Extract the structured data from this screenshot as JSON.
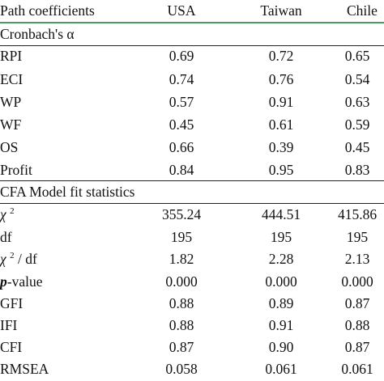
{
  "header": {
    "label": "Path coefficients",
    "columns": [
      "USA",
      "Taiwan",
      "Chile"
    ]
  },
  "sections": [
    {
      "title": "Cronbach's α",
      "rows": [
        {
          "label": "RPI",
          "values": [
            "0.69",
            "0.72",
            "0.65"
          ]
        },
        {
          "label": "ECI",
          "values": [
            "0.74",
            "0.76",
            "0.54"
          ]
        },
        {
          "label": "WP",
          "values": [
            "0.57",
            "0.91",
            "0.63"
          ]
        },
        {
          "label": "WF",
          "values": [
            "0.45",
            "0.61",
            "0.59"
          ]
        },
        {
          "label": "OS",
          "values": [
            "0.66",
            "0.39",
            "0.45"
          ]
        },
        {
          "label": "Profit",
          "values": [
            "0.84",
            "0.95",
            "0.83"
          ]
        }
      ]
    },
    {
      "title": "CFA Model fit statistics",
      "rows": [
        {
          "label_chi": "χ",
          "label_sup": "2",
          "values": [
            "355.24",
            "444.51",
            "415.86"
          ]
        },
        {
          "label": "df",
          "values": [
            "195",
            "195",
            "195"
          ]
        },
        {
          "label_chi": "χ",
          "label_sup": "2",
          "label_suffix": " / df",
          "values": [
            "1.82",
            "2.28",
            "2.13"
          ]
        },
        {
          "label_p": "p",
          "label_suffix": "-value",
          "values": [
            "0.000",
            "0.000",
            "0.000"
          ]
        },
        {
          "label": "GFI",
          "values": [
            "0.88",
            "0.89",
            "0.87"
          ]
        },
        {
          "label": "IFI",
          "values": [
            "0.88",
            "0.91",
            "0.88"
          ]
        },
        {
          "label": "CFI",
          "values": [
            "0.87",
            "0.90",
            "0.87"
          ]
        },
        {
          "label": "RMSEA",
          "values": [
            "0.058",
            "0.061",
            "0.061"
          ]
        }
      ]
    }
  ]
}
